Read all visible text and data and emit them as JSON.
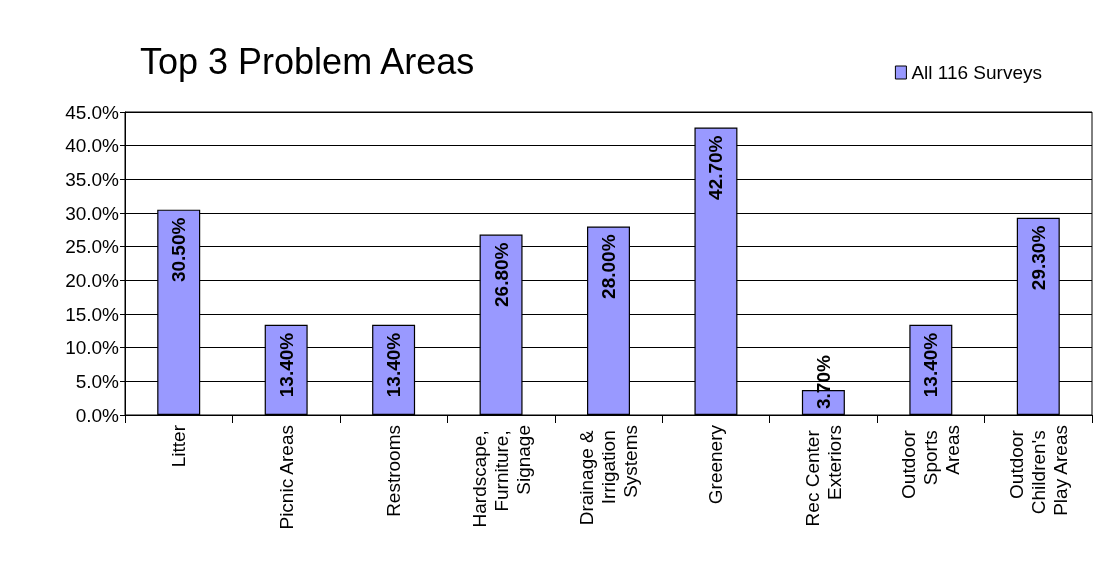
{
  "chart_data": {
    "type": "bar",
    "title": "Top 3 Problem Areas",
    "categories": [
      "Litter",
      "Picnic Areas",
      "Restrooms",
      "Hardscape, Furniture, Signage",
      "Drainage & Irrigation Systems",
      "Greenery",
      "Rec Center Exteriors",
      "Outdoor Sports Areas",
      "Outdoor Children's Play Areas"
    ],
    "series": [
      {
        "name": "All 116 Surveys",
        "color": "#9999ff",
        "values": [
          30.5,
          13.4,
          13.4,
          26.8,
          28.0,
          42.7,
          3.7,
          13.4,
          29.3
        ],
        "value_labels": [
          "30.50%",
          "13.40%",
          "13.40%",
          "26.80%",
          "28.00%",
          "42.70%",
          "3.70%",
          "13.40%",
          "29.30%"
        ]
      }
    ],
    "ylim": [
      0,
      45
    ],
    "yticks": [
      {
        "value": 0,
        "label": "0.0%"
      },
      {
        "value": 5,
        "label": "5.0%"
      },
      {
        "value": 10,
        "label": "10.0%"
      },
      {
        "value": 15,
        "label": "15.0%"
      },
      {
        "value": 20,
        "label": "20.0%"
      },
      {
        "value": 25,
        "label": "25.0%"
      },
      {
        "value": 30,
        "label": "30.0%"
      },
      {
        "value": 35,
        "label": "35.0%"
      },
      {
        "value": 40,
        "label": "40.0%"
      },
      {
        "value": 45,
        "label": "45.0%"
      }
    ],
    "grid": "y",
    "legend": "top right"
  }
}
